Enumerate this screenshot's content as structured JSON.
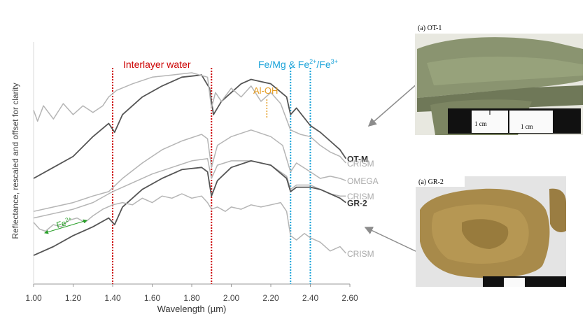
{
  "chart_data": {
    "type": "line",
    "xlabel": "Wavelength (µm)",
    "ylabel": "Reflectance, rescaled and offset for clarity",
    "xlim": [
      1.0,
      2.6
    ],
    "xticks": [
      "1.00",
      "1.20",
      "1.40",
      "1.60",
      "1.80",
      "2.00",
      "2.20",
      "2.40",
      "2.60"
    ],
    "grid": false,
    "annotations": {
      "interlayer_water": "Interlayer water",
      "femg_prefix": "Fe/Mg & Fe",
      "fe2_sup": "2+",
      "slash": "/Fe",
      "fe3_sup": "3+",
      "aloh": "Al-OH",
      "fe2_base": "Fe",
      "fe2_arrow_sup": "2+"
    },
    "marker_lines": [
      {
        "x": 1.4,
        "color": "#cc0000"
      },
      {
        "x": 1.9,
        "color": "#cc0000"
      },
      {
        "x": 2.3,
        "color": "#1aa3d9"
      },
      {
        "x": 2.4,
        "color": "#1aa3d9"
      }
    ],
    "aloh_marker": {
      "x": 2.18,
      "color": "#e59b1f"
    },
    "series": [
      {
        "name": "OT-M",
        "color": "#555555",
        "x": [
          1.0,
          1.1,
          1.2,
          1.3,
          1.38,
          1.41,
          1.45,
          1.55,
          1.65,
          1.75,
          1.85,
          1.89,
          1.91,
          1.95,
          2.0,
          2.05,
          2.1,
          2.2,
          2.28,
          2.3,
          2.33,
          2.4,
          2.45,
          2.5,
          2.55,
          2.58
        ],
        "y": [
          0.33,
          0.38,
          0.43,
          0.52,
          0.58,
          0.54,
          0.62,
          0.7,
          0.75,
          0.79,
          0.8,
          0.74,
          0.62,
          0.68,
          0.72,
          0.76,
          0.78,
          0.76,
          0.7,
          0.62,
          0.65,
          0.57,
          0.54,
          0.5,
          0.46,
          0.42
        ]
      },
      {
        "name": "CRISM",
        "color": "#b5b5b5",
        "x": [
          1.0,
          1.02,
          1.05,
          1.1,
          1.15,
          1.2,
          1.25,
          1.3,
          1.35,
          1.38,
          1.42,
          1.5,
          1.6,
          1.7,
          1.8,
          1.88,
          1.9,
          1.92,
          1.95,
          2.0,
          2.05,
          2.1,
          2.15,
          2.2,
          2.25,
          2.3,
          2.35,
          2.4,
          2.45,
          2.5,
          2.55,
          2.58
        ],
        "y": [
          0.64,
          0.59,
          0.66,
          0.6,
          0.67,
          0.62,
          0.66,
          0.63,
          0.66,
          0.7,
          0.73,
          0.76,
          0.79,
          0.8,
          0.81,
          0.79,
          0.65,
          0.72,
          0.68,
          0.74,
          0.7,
          0.75,
          0.68,
          0.72,
          0.67,
          0.55,
          0.53,
          0.52,
          0.48,
          0.45,
          0.43,
          0.4
        ]
      },
      {
        "name": "OMEGA",
        "color": "#b5b5b5",
        "x": [
          1.0,
          1.1,
          1.2,
          1.3,
          1.38,
          1.45,
          1.55,
          1.65,
          1.75,
          1.85,
          1.88,
          1.9,
          1.93,
          2.0,
          2.1,
          2.2,
          2.26,
          2.3,
          2.33,
          2.4,
          2.45,
          2.5,
          2.55,
          2.58
        ],
        "y": [
          0.18,
          0.2,
          0.22,
          0.25,
          0.27,
          0.33,
          0.4,
          0.46,
          0.5,
          0.53,
          0.51,
          0.38,
          0.48,
          0.52,
          0.55,
          0.52,
          0.48,
          0.36,
          0.4,
          0.36,
          0.33,
          0.34,
          0.33,
          0.32
        ]
      },
      {
        "name": "CRISM",
        "color": "#b5b5b5",
        "x": [
          1.0,
          1.1,
          1.2,
          1.3,
          1.4,
          1.5,
          1.6,
          1.7,
          1.8,
          1.88,
          1.9,
          1.93,
          2.0,
          2.1,
          2.2,
          2.28,
          2.3,
          2.33,
          2.4,
          2.45,
          2.5,
          2.55,
          2.58
        ],
        "y": [
          0.15,
          0.17,
          0.19,
          0.22,
          0.27,
          0.31,
          0.35,
          0.38,
          0.41,
          0.42,
          0.33,
          0.39,
          0.41,
          0.41,
          0.39,
          0.34,
          0.28,
          0.3,
          0.3,
          0.28,
          0.26,
          0.25,
          0.25
        ]
      },
      {
        "name": "GR-2",
        "color": "#555555",
        "x": [
          1.0,
          1.1,
          1.2,
          1.3,
          1.38,
          1.41,
          1.45,
          1.55,
          1.65,
          1.75,
          1.85,
          1.88,
          1.9,
          1.93,
          2.0,
          2.1,
          2.2,
          2.28,
          2.3,
          2.33,
          2.4,
          2.45,
          2.5,
          2.55,
          2.58
        ],
        "y": [
          -0.02,
          0.02,
          0.07,
          0.11,
          0.15,
          0.12,
          0.2,
          0.28,
          0.33,
          0.37,
          0.38,
          0.36,
          0.25,
          0.32,
          0.38,
          0.41,
          0.39,
          0.33,
          0.27,
          0.29,
          0.29,
          0.28,
          0.26,
          0.24,
          0.22
        ]
      },
      {
        "name": "CRISM",
        "color": "#b5b5b5",
        "x": [
          1.0,
          1.03,
          1.06,
          1.1,
          1.14,
          1.18,
          1.22,
          1.26,
          1.3,
          1.35,
          1.4,
          1.45,
          1.5,
          1.55,
          1.6,
          1.65,
          1.7,
          1.75,
          1.8,
          1.85,
          1.88,
          1.9,
          1.93,
          1.97,
          2.0,
          2.05,
          2.1,
          2.15,
          2.2,
          2.25,
          2.28,
          2.3,
          2.33,
          2.37,
          2.4,
          2.45,
          2.5,
          2.55,
          2.58
        ],
        "y": [
          0.13,
          0.1,
          0.09,
          0.12,
          0.11,
          0.14,
          0.15,
          0.13,
          0.16,
          0.19,
          0.21,
          0.22,
          0.21,
          0.24,
          0.22,
          0.25,
          0.24,
          0.26,
          0.24,
          0.25,
          0.22,
          0.19,
          0.2,
          0.18,
          0.2,
          0.19,
          0.21,
          0.2,
          0.21,
          0.22,
          0.18,
          0.07,
          0.05,
          0.08,
          0.06,
          0.04,
          0.0,
          0.02,
          -0.01
        ]
      }
    ],
    "curve_labels": [
      {
        "series": 0,
        "text": "OT-M",
        "color": "#333333",
        "bold": true
      },
      {
        "series": 1,
        "text": "CRISM",
        "color": "#aaaaaa",
        "bold": false
      },
      {
        "series": 2,
        "text": "OMEGA",
        "color": "#aaaaaa",
        "bold": false
      },
      {
        "series": 3,
        "text": "CRISM",
        "color": "#aaaaaa",
        "bold": false
      },
      {
        "series": 4,
        "text": "GR-2",
        "color": "#333333",
        "bold": true
      },
      {
        "series": 5,
        "text": "CRISM",
        "color": "#aaaaaa",
        "bold": false
      }
    ],
    "ylim": [
      -0.15,
      0.95
    ]
  },
  "photos": [
    {
      "label": "(a) OT-1",
      "scale_labels": [
        "1 cm",
        "1 cm"
      ],
      "color": "#8a9470"
    },
    {
      "label": "(a) GR-2",
      "color": "#a88a4a"
    }
  ]
}
